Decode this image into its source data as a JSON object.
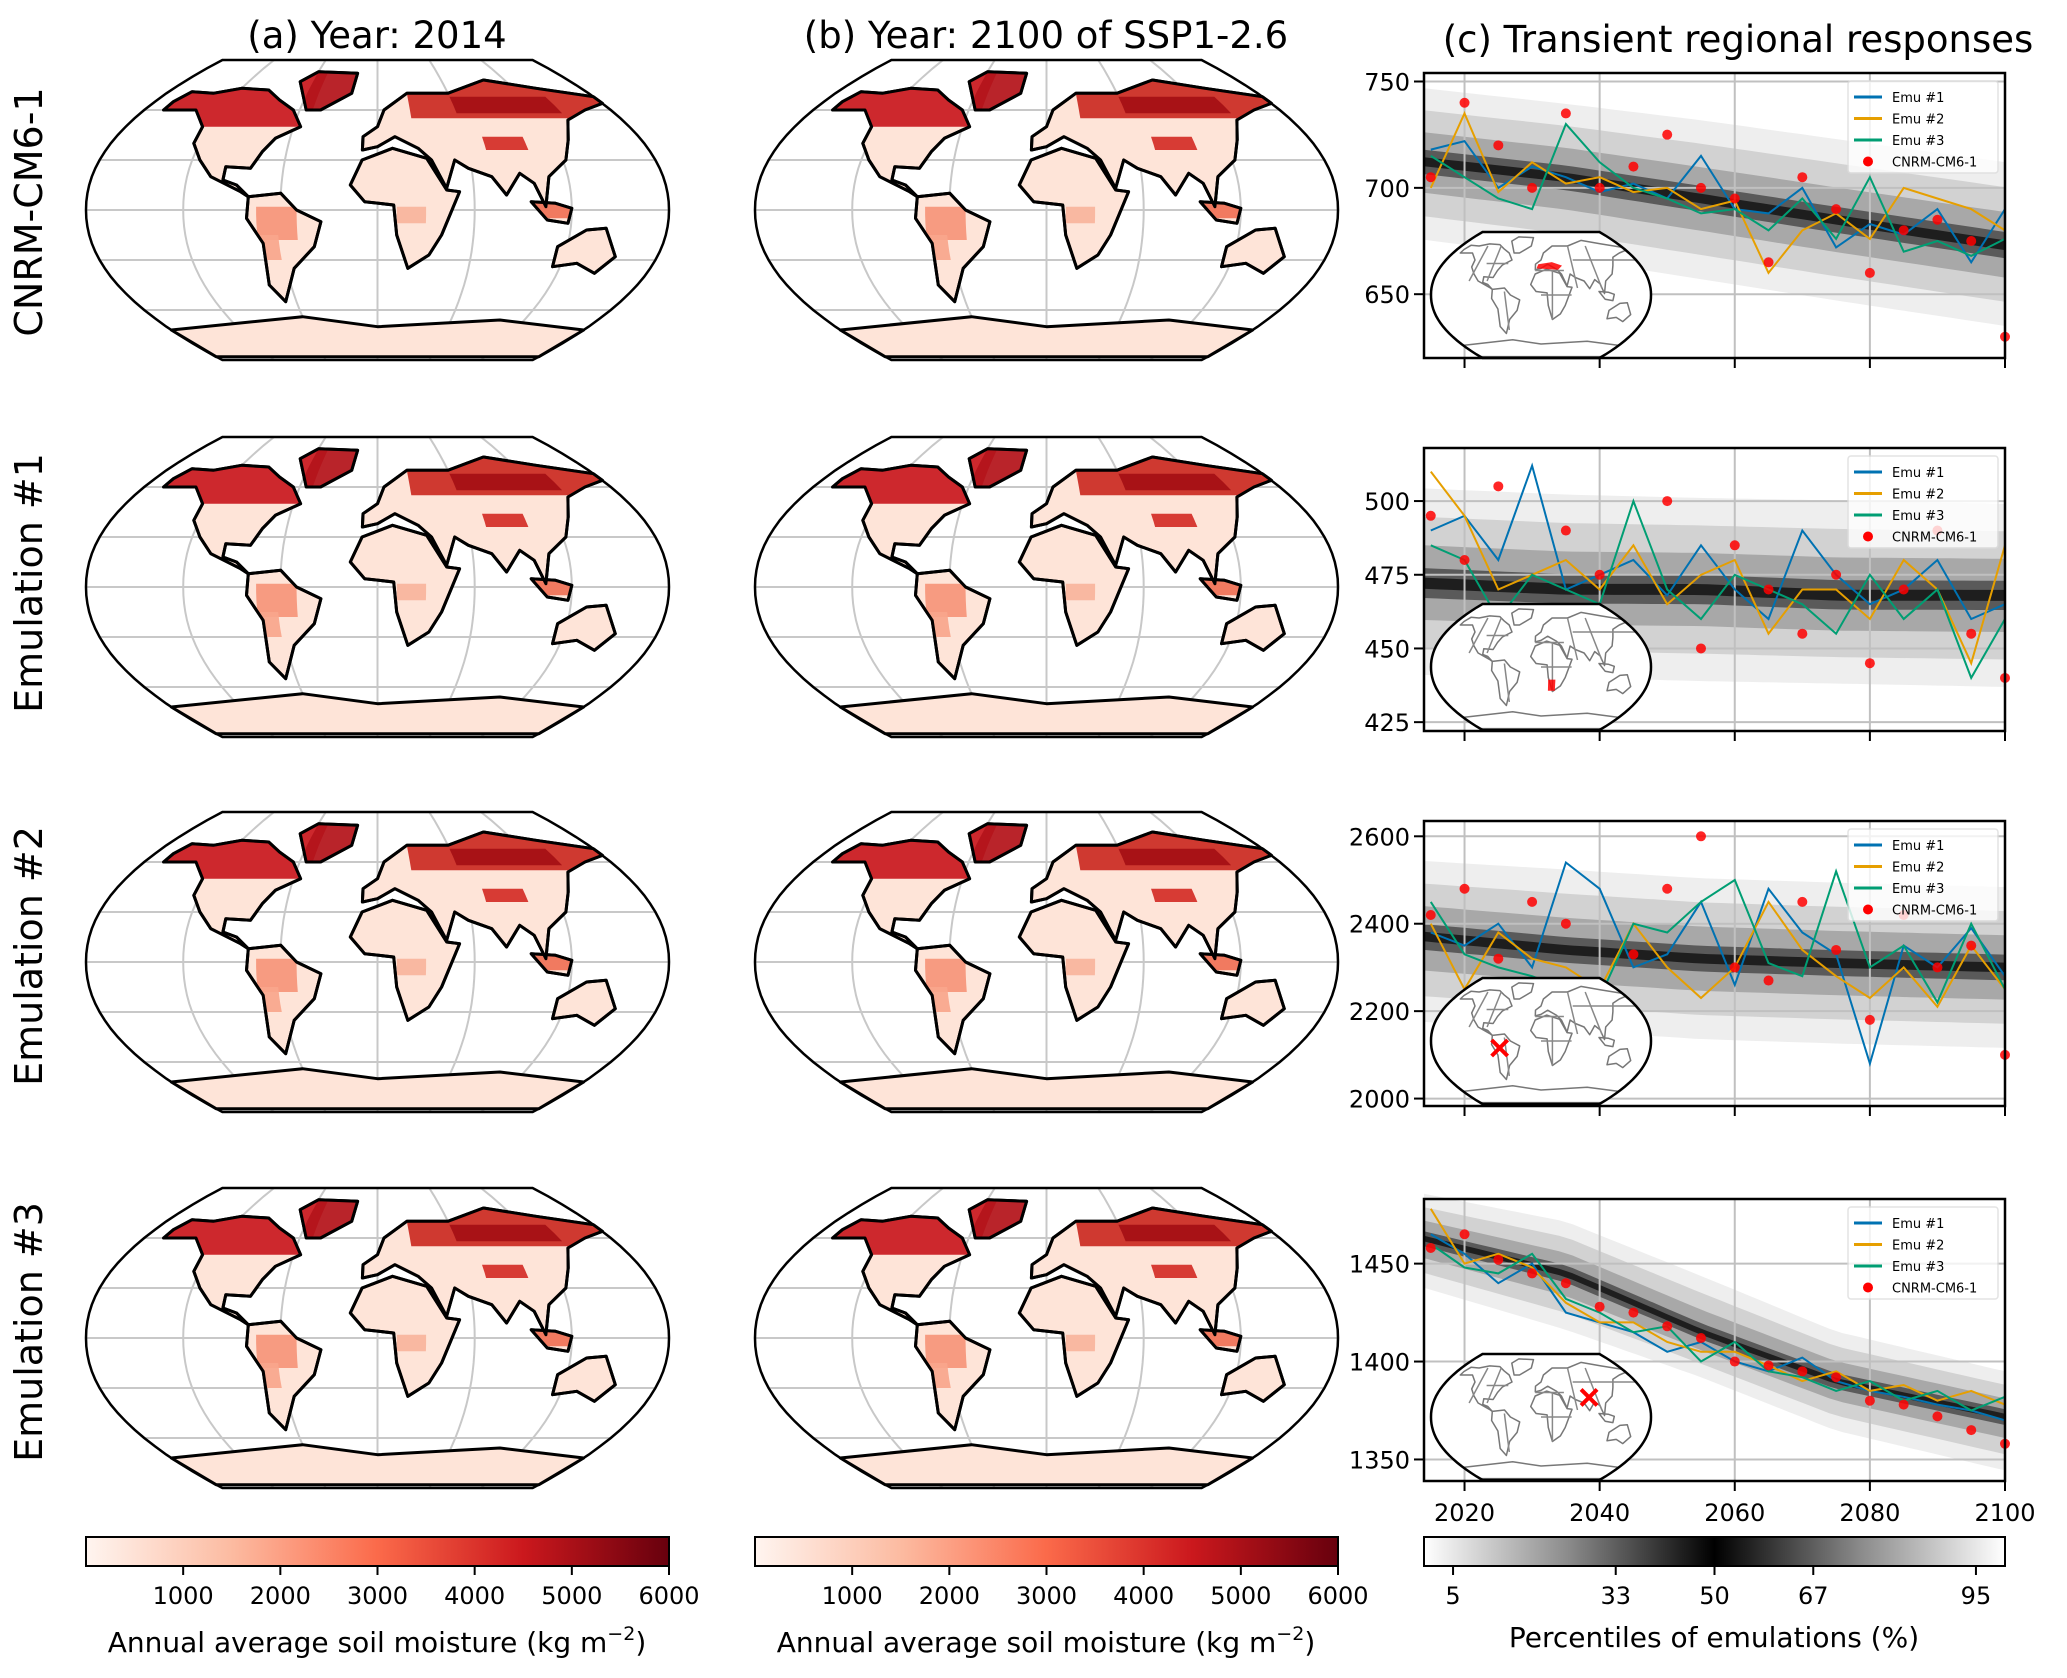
{
  "titles": {
    "a": "(a) Year: 2014",
    "b": "(b) Year: 2100 of SSP1-2.6",
    "c": "(c) Transient regional responses"
  },
  "rows": [
    {
      "label": "CNRM-CM6-1",
      "color": "#000000"
    },
    {
      "label": "Emulation #1",
      "color": "#0072B2"
    },
    {
      "label": "Emulation #2",
      "color": "#E69F00"
    },
    {
      "label": "Emulation #3",
      "color": "#009E73"
    }
  ],
  "colorbars": {
    "soil": {
      "label": "Annual average soil moisture (kg m",
      "label_sup": "−2",
      "label_end": ")",
      "range": [
        0,
        6000
      ],
      "ticks": [
        "1000",
        "2000",
        "3000",
        "4000",
        "5000",
        "6000"
      ],
      "colormap": "Reds"
    },
    "percentiles": {
      "label": "Percentiles of emulations (%)",
      "range": [
        0,
        100
      ],
      "ticks": [
        "5",
        "33",
        "50",
        "67",
        "95"
      ],
      "colormap": "white-black-white"
    }
  },
  "legend": [
    "Emu #1",
    "Emu #2",
    "Emu #3",
    "CNRM-CM6-1"
  ],
  "colors": {
    "emu1": "#0072B2",
    "emu2": "#E69F00",
    "emu3": "#009E73",
    "cnrm": "#FF0000",
    "map_high": "#a50f15",
    "map_low": "#fff5f0"
  },
  "chart_data": [
    {
      "type": "line",
      "xlim": [
        2014,
        2100
      ],
      "ylim": [
        620,
        754
      ],
      "xticks": [
        "2020",
        "2040",
        "2060",
        "2080",
        "2100"
      ],
      "yticks": [
        "650",
        "700",
        "750"
      ],
      "grid": true,
      "legend_position": "top-right",
      "inset_region": {
        "shape": "polygon",
        "location": "Mediterranean / southern Europe"
      },
      "x": [
        2015,
        2020,
        2025,
        2030,
        2035,
        2040,
        2045,
        2050,
        2055,
        2060,
        2065,
        2070,
        2075,
        2080,
        2085,
        2090,
        2095,
        2100
      ],
      "percentile_band": {
        "x": [
          2015,
          2035,
          2055,
          2075,
          2100
        ],
        "p50": [
          712,
          705,
          695,
          685,
          673
        ],
        "p5": [
          680,
          672,
          662,
          652,
          640
        ],
        "p95": [
          742,
          735,
          727,
          718,
          707
        ]
      },
      "series": [
        {
          "name": "Emu #1",
          "values": [
            718,
            722,
            700,
            710,
            705,
            698,
            702,
            695,
            715,
            690,
            688,
            700,
            672,
            683,
            678,
            690,
            665,
            690
          ]
        },
        {
          "name": "Emu #2",
          "values": [
            700,
            735,
            698,
            712,
            702,
            705,
            698,
            700,
            690,
            694,
            660,
            680,
            688,
            676,
            700,
            695,
            690,
            680
          ]
        },
        {
          "name": "Emu #3",
          "values": [
            715,
            705,
            695,
            690,
            730,
            712,
            700,
            695,
            688,
            690,
            680,
            695,
            676,
            705,
            670,
            675,
            668,
            676
          ]
        },
        {
          "name": "CNRM-CM6-1",
          "values": [
            705,
            740,
            720,
            700,
            735,
            700,
            710,
            725,
            700,
            695,
            665,
            705,
            690,
            660,
            680,
            685,
            675,
            630
          ]
        }
      ]
    },
    {
      "type": "line",
      "xlim": [
        2014,
        2100
      ],
      "ylim": [
        422,
        518
      ],
      "xticks": [
        "2020",
        "2040",
        "2060",
        "2080",
        "2100"
      ],
      "yticks": [
        "425",
        "450",
        "475",
        "500"
      ],
      "grid": true,
      "legend_position": "top-right",
      "inset_region": {
        "shape": "rect",
        "location": "southern Africa"
      },
      "x": [
        2015,
        2020,
        2025,
        2030,
        2035,
        2040,
        2045,
        2050,
        2055,
        2060,
        2065,
        2070,
        2075,
        2080,
        2085,
        2090,
        2095,
        2100
      ],
      "percentile_band": {
        "x": [
          2015,
          2035,
          2055,
          2075,
          2100
        ],
        "p50": [
          472,
          470,
          470,
          468,
          468
        ],
        "p5": [
          445,
          444,
          443,
          442,
          441
        ],
        "p95": [
          500,
          498,
          497,
          496,
          495
        ]
      },
      "series": [
        {
          "name": "Emu #1",
          "values": [
            490,
            495,
            480,
            512,
            470,
            475,
            480,
            468,
            485,
            470,
            460,
            490,
            475,
            465,
            470,
            480,
            460,
            465
          ]
        },
        {
          "name": "Emu #2",
          "values": [
            510,
            495,
            470,
            475,
            480,
            470,
            485,
            465,
            475,
            480,
            455,
            470,
            470,
            460,
            480,
            470,
            445,
            485
          ]
        },
        {
          "name": "Emu #3",
          "values": [
            485,
            480,
            460,
            475,
            470,
            465,
            500,
            470,
            460,
            475,
            470,
            465,
            455,
            475,
            460,
            470,
            440,
            460
          ]
        },
        {
          "name": "CNRM-CM6-1",
          "values": [
            495,
            480,
            505,
            460,
            490,
            475,
            440,
            500,
            450,
            485,
            470,
            455,
            475,
            445,
            470,
            490,
            455,
            440
          ]
        }
      ]
    },
    {
      "type": "line",
      "xlim": [
        2014,
        2100
      ],
      "ylim": [
        1983,
        2635
      ],
      "xticks": [
        "2020",
        "2040",
        "2060",
        "2080",
        "2100"
      ],
      "yticks": [
        "2000",
        "2200",
        "2400",
        "2600"
      ],
      "grid": true,
      "legend_position": "top-right",
      "inset_region": {
        "shape": "x",
        "location": "western South America"
      },
      "x": [
        2015,
        2020,
        2025,
        2030,
        2035,
        2040,
        2045,
        2050,
        2055,
        2060,
        2065,
        2070,
        2075,
        2080,
        2085,
        2090,
        2095,
        2100
      ],
      "percentile_band": {
        "x": [
          2015,
          2035,
          2055,
          2075,
          2100
        ],
        "p50": [
          2370,
          2340,
          2320,
          2310,
          2300
        ],
        "p5": [
          2200,
          2180,
          2160,
          2150,
          2140
        ],
        "p95": [
          2520,
          2500,
          2480,
          2470,
          2460
        ]
      },
      "series": [
        {
          "name": "Emu #1",
          "values": [
            2380,
            2350,
            2400,
            2300,
            2540,
            2480,
            2300,
            2330,
            2450,
            2260,
            2480,
            2380,
            2330,
            2080,
            2350,
            2300,
            2390,
            2280
          ]
        },
        {
          "name": "Emu #2",
          "values": [
            2400,
            2250,
            2380,
            2320,
            2300,
            2250,
            2400,
            2300,
            2230,
            2300,
            2450,
            2340,
            2280,
            2230,
            2300,
            2210,
            2350,
            2250
          ]
        },
        {
          "name": "Emu #3",
          "values": [
            2450,
            2330,
            2300,
            2280,
            2250,
            2230,
            2400,
            2380,
            2450,
            2500,
            2310,
            2280,
            2520,
            2300,
            2350,
            2220,
            2400,
            2250
          ]
        },
        {
          "name": "CNRM-CM6-1",
          "values": [
            2420,
            2480,
            2320,
            2450,
            2400,
            2150,
            2330,
            2480,
            2600,
            2300,
            2270,
            2450,
            2340,
            2180,
            2420,
            2300,
            2350,
            2100
          ]
        }
      ]
    },
    {
      "type": "line",
      "xlim": [
        2014,
        2100
      ],
      "ylim": [
        1339,
        1483
      ],
      "xticks": [
        "2020",
        "2040",
        "2060",
        "2080",
        "2100"
      ],
      "yticks": [
        "1350",
        "1400",
        "1450"
      ],
      "grid": true,
      "legend_position": "top-right",
      "inset_region": {
        "shape": "x",
        "location": "South Asia"
      },
      "x": [
        2015,
        2020,
        2025,
        2030,
        2035,
        2040,
        2045,
        2050,
        2055,
        2060,
        2065,
        2070,
        2075,
        2080,
        2085,
        2090,
        2095,
        2100
      ],
      "percentile_band": {
        "x": [
          2015,
          2035,
          2055,
          2075,
          2100
        ],
        "p50": [
          1462,
          1445,
          1415,
          1390,
          1372
        ],
        "p5": [
          1440,
          1420,
          1395,
          1368,
          1348
        ],
        "p95": [
          1482,
          1468,
          1440,
          1412,
          1392
        ]
      },
      "series": [
        {
          "name": "Emu #1",
          "values": [
            1465,
            1455,
            1440,
            1450,
            1425,
            1420,
            1415,
            1405,
            1410,
            1400,
            1395,
            1402,
            1390,
            1385,
            1382,
            1378,
            1375,
            1370
          ]
        },
        {
          "name": "Emu #2",
          "values": [
            1478,
            1450,
            1455,
            1448,
            1430,
            1420,
            1420,
            1410,
            1405,
            1405,
            1398,
            1390,
            1395,
            1385,
            1388,
            1380,
            1385,
            1378
          ]
        },
        {
          "name": "Emu #3",
          "values": [
            1460,
            1448,
            1445,
            1455,
            1432,
            1425,
            1415,
            1418,
            1400,
            1410,
            1395,
            1392,
            1385,
            1390,
            1380,
            1385,
            1375,
            1382
          ]
        },
        {
          "name": "CNRM-CM6-1",
          "values": [
            1458,
            1465,
            1452,
            1445,
            1440,
            1428,
            1425,
            1418,
            1412,
            1400,
            1398,
            1395,
            1392,
            1380,
            1378,
            1372,
            1365,
            1358
          ]
        }
      ]
    }
  ]
}
